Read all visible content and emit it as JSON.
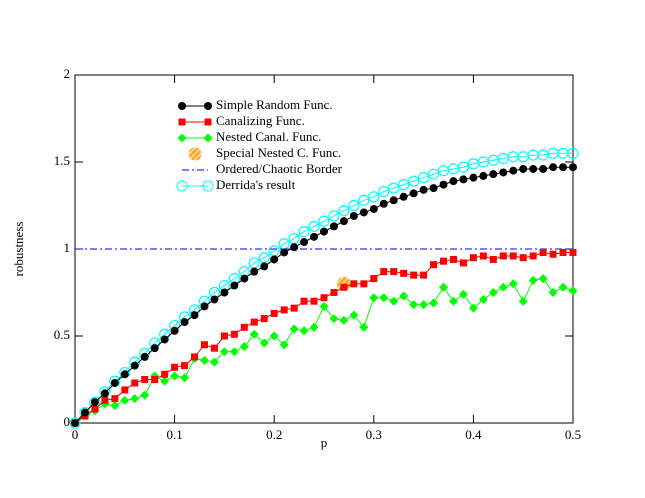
{
  "chart_data": {
    "type": "line",
    "xlabel": "p",
    "ylabel": "robustness",
    "xlim": [
      0,
      0.5
    ],
    "xticks": [
      0,
      0.1,
      0.2,
      0.3,
      0.4,
      0.5
    ],
    "ylim": [
      0,
      2
    ],
    "yticks": [
      0,
      0.5,
      1,
      1.5,
      2
    ],
    "x": [
      0,
      0.01,
      0.02,
      0.03,
      0.04,
      0.05,
      0.06,
      0.07,
      0.08,
      0.09,
      0.1,
      0.11,
      0.12,
      0.13,
      0.14,
      0.15,
      0.16,
      0.17,
      0.18,
      0.19,
      0.2,
      0.21,
      0.22,
      0.23,
      0.24,
      0.25,
      0.26,
      0.27,
      0.28,
      0.29,
      0.3,
      0.31,
      0.32,
      0.33,
      0.34,
      0.35,
      0.36,
      0.37,
      0.38,
      0.39,
      0.4,
      0.41,
      0.42,
      0.43,
      0.44,
      0.45,
      0.46,
      0.47,
      0.48,
      0.49,
      0.5
    ],
    "series": [
      {
        "name": "Simple Random Func.",
        "color": "#000000",
        "marker": "circle",
        "values": [
          0,
          0.06,
          0.12,
          0.17,
          0.23,
          0.28,
          0.33,
          0.38,
          0.43,
          0.48,
          0.53,
          0.58,
          0.62,
          0.67,
          0.71,
          0.75,
          0.79,
          0.83,
          0.87,
          0.9,
          0.94,
          0.98,
          1.01,
          1.04,
          1.07,
          1.1,
          1.13,
          1.16,
          1.19,
          1.21,
          1.23,
          1.26,
          1.28,
          1.3,
          1.32,
          1.34,
          1.35,
          1.37,
          1.39,
          1.4,
          1.41,
          1.42,
          1.43,
          1.44,
          1.45,
          1.46,
          1.46,
          1.46,
          1.47,
          1.47,
          1.47
        ]
      },
      {
        "name": "Canalizing Func.",
        "color": "#ff0000",
        "marker": "square",
        "values": [
          0,
          0.04,
          0.08,
          0.13,
          0.14,
          0.19,
          0.23,
          0.25,
          0.25,
          0.28,
          0.32,
          0.33,
          0.38,
          0.45,
          0.43,
          0.5,
          0.51,
          0.55,
          0.58,
          0.6,
          0.63,
          0.65,
          0.66,
          0.7,
          0.7,
          0.72,
          0.75,
          0.78,
          0.8,
          0.8,
          0.83,
          0.87,
          0.87,
          0.86,
          0.85,
          0.85,
          0.91,
          0.93,
          0.94,
          0.92,
          0.95,
          0.96,
          0.94,
          0.96,
          0.96,
          0.95,
          0.96,
          0.98,
          0.97,
          0.98,
          0.98
        ]
      },
      {
        "name": "Nested Canal. Func.",
        "color": "#00ff00",
        "marker": "diamond",
        "values": [
          0,
          0.05,
          0.07,
          0.11,
          0.1,
          0.13,
          0.14,
          0.16,
          0.27,
          0.24,
          0.27,
          0.26,
          0.37,
          0.36,
          0.35,
          0.41,
          0.41,
          0.44,
          0.51,
          0.46,
          0.5,
          0.45,
          0.54,
          0.53,
          0.55,
          0.67,
          0.6,
          0.59,
          0.62,
          0.55,
          0.72,
          0.72,
          0.7,
          0.73,
          0.68,
          0.68,
          0.69,
          0.78,
          0.7,
          0.74,
          0.66,
          0.71,
          0.75,
          0.78,
          0.8,
          0.7,
          0.82,
          0.83,
          0.75,
          0.78,
          0.76
        ]
      },
      {
        "name": "Special Nested C. Func.",
        "color": "#ffa500",
        "marker": "hatched",
        "x": [
          0.27
        ],
        "values": [
          0.8
        ]
      },
      {
        "name": "Ordered/Chaotic Border",
        "color": "#0000ff",
        "style": "dashdot",
        "x": [
          0,
          0.5
        ],
        "values": [
          1,
          1
        ]
      },
      {
        "name": "Derrida's result",
        "color": "#00ffff",
        "marker": "open-circle",
        "values": [
          0,
          0.06,
          0.12,
          0.18,
          0.24,
          0.29,
          0.35,
          0.4,
          0.46,
          0.51,
          0.56,
          0.61,
          0.65,
          0.7,
          0.75,
          0.79,
          0.83,
          0.87,
          0.92,
          0.95,
          0.99,
          1.03,
          1.06,
          1.1,
          1.13,
          1.16,
          1.19,
          1.22,
          1.25,
          1.28,
          1.3,
          1.33,
          1.35,
          1.37,
          1.39,
          1.41,
          1.43,
          1.45,
          1.46,
          1.47,
          1.49,
          1.5,
          1.51,
          1.52,
          1.53,
          1.53,
          1.54,
          1.54,
          1.55,
          1.55,
          1.55
        ]
      }
    ]
  }
}
